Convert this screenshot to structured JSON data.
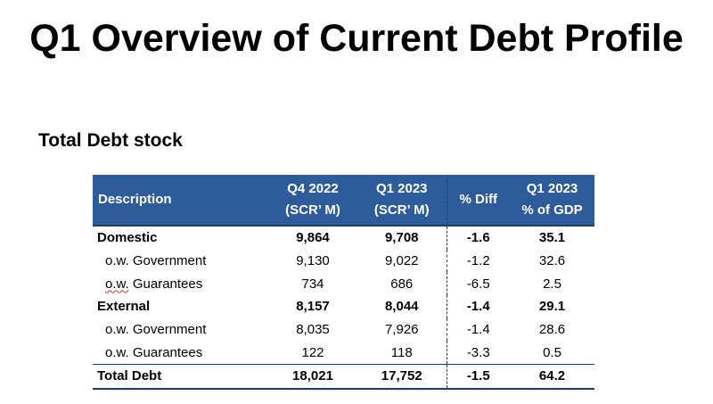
{
  "page": {
    "title": "Q1 Overview of Current Debt Profile",
    "subtitle": "Total Debt stock"
  },
  "table": {
    "headers": {
      "description": "Description",
      "q4_2022": [
        "Q4 2022",
        "(SCR’ M)"
      ],
      "q1_2023": [
        "Q1 2023",
        "(SCR’ M)"
      ],
      "pct_diff": "% Diff",
      "pct_gdp": [
        "Q1 2023",
        "% of GDP"
      ]
    },
    "rows": [
      {
        "description": "Domestic",
        "q4_2022": "9,864",
        "q1_2023": "9,708",
        "pct_diff": "-1.6",
        "pct_gdp": "35.1"
      },
      {
        "description": "o.w. Government",
        "q4_2022": "9,130",
        "q1_2023": "9,022",
        "pct_diff": "-1.2",
        "pct_gdp": "32.6"
      },
      {
        "description_prefix": "o.w.",
        "description_rest": " Guarantees",
        "q4_2022": "734",
        "q1_2023": "686",
        "pct_diff": "-6.5",
        "pct_gdp": "2.5"
      },
      {
        "description": "External",
        "q4_2022": "8,157",
        "q1_2023": "8,044",
        "pct_diff": "-1.4",
        "pct_gdp": "29.1"
      },
      {
        "description": "o.w. Government",
        "q4_2022": "8,035",
        "q1_2023": "7,926",
        "pct_diff": "-1.4",
        "pct_gdp": "28.6"
      },
      {
        "description": "o.w. Guarantees",
        "q4_2022": "122",
        "q1_2023": "118",
        "pct_diff": "-3.3",
        "pct_gdp": "0.5"
      },
      {
        "description": "Total Debt",
        "q4_2022": "18,021",
        "q1_2023": "17,752",
        "pct_diff": "-1.5",
        "pct_gdp": "64.2"
      }
    ]
  },
  "colors": {
    "header_background": "#2e5c9a",
    "header_text": "#ffffff",
    "rule_color": "#1f3e66",
    "spellcheck_underline": "#d0312d"
  }
}
